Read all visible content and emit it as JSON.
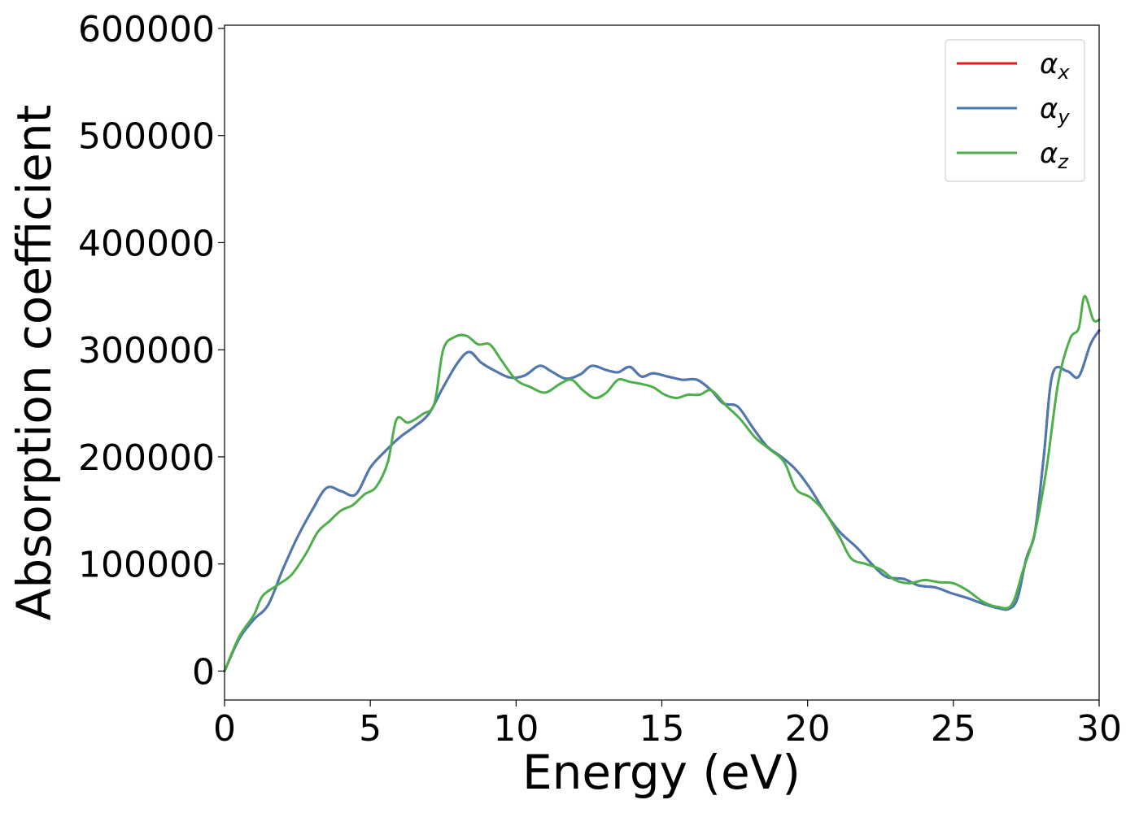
{
  "chart_data": {
    "type": "line",
    "xlabel": "Energy (eV)",
    "ylabel": "Absorption coefficient",
    "xlim": [
      0,
      30
    ],
    "ylim": [
      -27000,
      603000
    ],
    "xticks": [
      0,
      5,
      10,
      15,
      20,
      25,
      30
    ],
    "xtick_labels": [
      "0",
      "5",
      "10",
      "15",
      "20",
      "25",
      "30"
    ],
    "yticks": [
      0,
      100000,
      200000,
      300000,
      400000,
      500000,
      600000
    ],
    "ytick_labels": [
      "0",
      "100000",
      "200000",
      "300000",
      "400000",
      "500000",
      "600000"
    ],
    "grid": false,
    "legend_position": "top-right",
    "series": [
      {
        "name": "α",
        "subscript": "x",
        "color": "#e41a1c",
        "x": [
          0,
          0.5,
          1,
          1.5,
          2,
          2.5,
          3,
          3.5,
          4,
          4.5,
          5,
          5.5,
          6,
          6.5,
          7,
          7.5,
          8,
          8.4,
          8.8,
          9.3,
          9.8,
          10.3,
          10.8,
          11.2,
          11.7,
          12.2,
          12.6,
          13.1,
          13.5,
          13.9,
          14.3,
          14.7,
          15.2,
          15.7,
          16.2,
          16.7,
          17.1,
          17.6,
          18.1,
          18.6,
          19.1,
          19.6,
          20.1,
          20.6,
          21.1,
          21.7,
          22.2,
          22.7,
          23.3,
          23.8,
          24.4,
          24.9,
          25.5,
          26.0,
          26.5,
          26.9,
          27.2,
          27.5,
          27.8,
          28.1,
          28.4,
          28.9,
          29.3,
          29.7,
          30.0
        ],
        "y": [
          0,
          30000,
          48000,
          62000,
          95000,
          125000,
          150000,
          171000,
          168000,
          165000,
          190000,
          205000,
          218000,
          228000,
          240000,
          265000,
          288000,
          298000,
          288000,
          280000,
          274000,
          276000,
          285000,
          280000,
          273000,
          277000,
          285000,
          281000,
          279000,
          284000,
          275000,
          278000,
          275000,
          272000,
          272000,
          262000,
          250000,
          247000,
          228000,
          210000,
          200000,
          188000,
          170000,
          148000,
          130000,
          115000,
          100000,
          88000,
          86000,
          80000,
          78000,
          73000,
          68000,
          63000,
          59000,
          58000,
          68000,
          105000,
          130000,
          200000,
          277000,
          280000,
          275000,
          305000,
          318000
        ]
      },
      {
        "name": "α",
        "subscript": "y",
        "color": "#4a7ab3",
        "x": [
          0,
          0.5,
          1,
          1.5,
          2,
          2.5,
          3,
          3.5,
          4,
          4.5,
          5,
          5.5,
          6,
          6.5,
          7,
          7.5,
          8,
          8.4,
          8.8,
          9.3,
          9.8,
          10.3,
          10.8,
          11.2,
          11.7,
          12.2,
          12.6,
          13.1,
          13.5,
          13.9,
          14.3,
          14.7,
          15.2,
          15.7,
          16.2,
          16.7,
          17.1,
          17.6,
          18.1,
          18.6,
          19.1,
          19.6,
          20.1,
          20.6,
          21.1,
          21.7,
          22.2,
          22.7,
          23.3,
          23.8,
          24.4,
          24.9,
          25.5,
          26.0,
          26.5,
          26.9,
          27.2,
          27.5,
          27.8,
          28.1,
          28.4,
          28.9,
          29.3,
          29.7,
          30.0
        ],
        "y": [
          0,
          30000,
          48000,
          62000,
          95000,
          125000,
          150000,
          171000,
          168000,
          165000,
          190000,
          205000,
          218000,
          228000,
          240000,
          265000,
          288000,
          298000,
          288000,
          280000,
          274000,
          276000,
          285000,
          280000,
          273000,
          277000,
          285000,
          281000,
          279000,
          284000,
          275000,
          278000,
          275000,
          272000,
          272000,
          262000,
          250000,
          247000,
          228000,
          210000,
          200000,
          188000,
          170000,
          148000,
          130000,
          115000,
          100000,
          88000,
          86000,
          80000,
          78000,
          73000,
          68000,
          63000,
          59000,
          58000,
          68000,
          105000,
          130000,
          200000,
          277000,
          280000,
          275000,
          305000,
          318000
        ]
      },
      {
        "name": "α",
        "subscript": "z",
        "color": "#4daf4a",
        "x": [
          0,
          0.5,
          1,
          1.3,
          1.8,
          2.3,
          2.8,
          3.2,
          3.6,
          4.0,
          4.4,
          4.8,
          5.2,
          5.6,
          5.9,
          6.3,
          6.8,
          7.2,
          7.5,
          7.9,
          8.3,
          8.7,
          9.1,
          9.5,
          10.0,
          10.5,
          11.0,
          11.5,
          11.9,
          12.3,
          12.7,
          13.1,
          13.5,
          13.9,
          14.3,
          14.7,
          15.1,
          15.5,
          15.9,
          16.3,
          16.7,
          17.2,
          17.7,
          18.2,
          18.7,
          19.2,
          19.6,
          20.1,
          20.6,
          21.1,
          21.5,
          22.0,
          22.5,
          23.0,
          23.5,
          24.0,
          24.5,
          25.0,
          25.5,
          26.0,
          26.5,
          27.0,
          27.4,
          27.8,
          28.2,
          28.6,
          29.0,
          29.3,
          29.5,
          29.8,
          30.0
        ],
        "y": [
          0,
          32000,
          52000,
          70000,
          80000,
          90000,
          110000,
          130000,
          140000,
          150000,
          155000,
          165000,
          172000,
          195000,
          235000,
          232000,
          240000,
          250000,
          300000,
          312000,
          313000,
          305000,
          305000,
          290000,
          272000,
          265000,
          260000,
          268000,
          272000,
          262000,
          255000,
          260000,
          272000,
          270000,
          268000,
          265000,
          258000,
          255000,
          258000,
          258000,
          262000,
          248000,
          235000,
          218000,
          207000,
          195000,
          170000,
          162000,
          148000,
          125000,
          105000,
          100000,
          95000,
          85000,
          82000,
          85000,
          83000,
          82000,
          75000,
          65000,
          60000,
          62000,
          95000,
          130000,
          190000,
          270000,
          310000,
          320000,
          350000,
          328000,
          328000
        ]
      }
    ]
  }
}
